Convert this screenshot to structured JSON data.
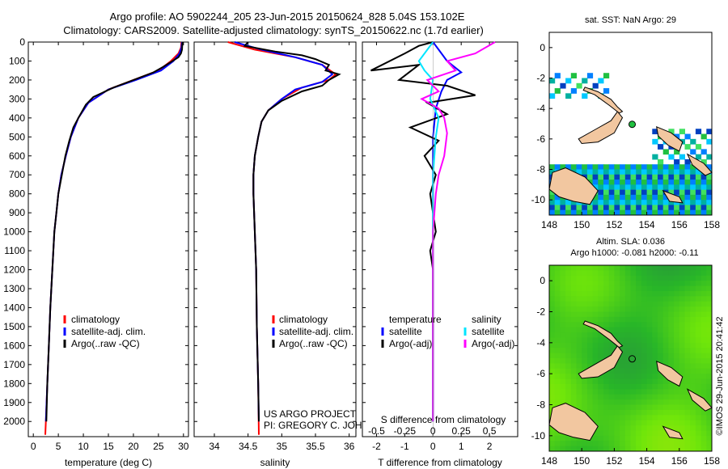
{
  "header": {
    "line1": "Argo profile: AO 5902244_205 23-Jun-2015 20150624_828 5.04S 153.102E",
    "line2": "Climatology: CARS2009. Satellite-adjusted climatology: synTS_20150622.nc (1.7d earlier)"
  },
  "colors": {
    "clim": "#ff0000",
    "sat": "#0000ff",
    "argo": "#000000",
    "sal_sat": "#00e5ff",
    "sal_argo": "#ff00ff",
    "land": "#f2c7a0"
  },
  "depth_axis": {
    "ticks": [
      0,
      100,
      200,
      300,
      400,
      500,
      600,
      700,
      800,
      900,
      1000,
      1100,
      1200,
      1300,
      1400,
      1500,
      1600,
      1700,
      1800,
      1900,
      2000
    ],
    "ylim": [
      0,
      2080
    ]
  },
  "chart_data": [
    {
      "type": "line",
      "id": "temperature",
      "xlabel": "temperature (deg C)",
      "xlim": [
        -1,
        31
      ],
      "xticks": [
        0,
        5,
        10,
        15,
        20,
        25,
        30
      ],
      "legend": [
        "climatology",
        "satellite-adj. clim.",
        "Argo(..raw -QC)"
      ],
      "series": [
        {
          "name": "climatology",
          "color": "clim",
          "points": [
            [
              29.6,
              0
            ],
            [
              29.5,
              30
            ],
            [
              29,
              60
            ],
            [
              27.5,
              100
            ],
            [
              25,
              150
            ],
            [
              20,
              200
            ],
            [
              15,
              250
            ],
            [
              11,
              320
            ],
            [
              9,
              400
            ],
            [
              7.5,
              500
            ],
            [
              6.5,
              600
            ],
            [
              5.6,
              700
            ],
            [
              5,
              800
            ],
            [
              4.6,
              900
            ],
            [
              4.2,
              1000
            ],
            [
              3.8,
              1200
            ],
            [
              3.4,
              1400
            ],
            [
              3.1,
              1600
            ],
            [
              2.8,
              1800
            ],
            [
              2.5,
              2000
            ],
            [
              2.4,
              2070
            ]
          ]
        },
        {
          "name": "satellite-adj. clim.",
          "color": "sat",
          "points": [
            [
              29.7,
              0
            ],
            [
              29.6,
              30
            ],
            [
              29.2,
              60
            ],
            [
              28,
              100
            ],
            [
              25.5,
              150
            ],
            [
              20.5,
              200
            ],
            [
              15,
              250
            ],
            [
              11,
              320
            ],
            [
              9,
              400
            ],
            [
              7.5,
              500
            ],
            [
              6.5,
              600
            ],
            [
              5.6,
              700
            ],
            [
              5,
              800
            ],
            [
              4.6,
              900
            ],
            [
              4.2,
              1000
            ],
            [
              3.8,
              1200
            ],
            [
              3.4,
              1400
            ],
            [
              3.1,
              1600
            ],
            [
              2.8,
              1800
            ],
            [
              2.5,
              2000
            ]
          ]
        },
        {
          "name": "Argo",
          "color": "argo",
          "points": [
            [
              29.8,
              0
            ],
            [
              29.7,
              40
            ],
            [
              29.5,
              60
            ],
            [
              29,
              80
            ],
            [
              26,
              130
            ],
            [
              24,
              160
            ],
            [
              19,
              210
            ],
            [
              16,
              240
            ],
            [
              12,
              290
            ],
            [
              10.5,
              330
            ],
            [
              9,
              400
            ],
            [
              8,
              450
            ],
            [
              7.2,
              520
            ],
            [
              6.4,
              600
            ],
            [
              5.7,
              700
            ],
            [
              5,
              800
            ],
            [
              4.6,
              900
            ],
            [
              4.2,
              1000
            ],
            [
              3.8,
              1200
            ],
            [
              3.4,
              1400
            ],
            [
              3.1,
              1600
            ],
            [
              2.8,
              1800
            ],
            [
              2.6,
              2000
            ]
          ]
        }
      ]
    },
    {
      "type": "line",
      "id": "salinity",
      "xlabel": "salinity",
      "xlim": [
        33.7,
        36.1
      ],
      "xticks": [
        34,
        34.5,
        35,
        35.5,
        36
      ],
      "legend": [
        "climatology",
        "satellite-adj. clim.",
        "Argo(..raw -QC)"
      ],
      "annotation": [
        "US ARGO PROJECT",
        "PI: GREGORY C. JOHNSON"
      ],
      "series": [
        {
          "name": "climatology",
          "color": "clim",
          "points": [
            [
              34.2,
              0
            ],
            [
              34.6,
              40
            ],
            [
              35.2,
              80
            ],
            [
              35.6,
              120
            ],
            [
              35.8,
              170
            ],
            [
              35.7,
              200
            ],
            [
              35.3,
              240
            ],
            [
              35,
              300
            ],
            [
              34.8,
              360
            ],
            [
              34.7,
              420
            ],
            [
              34.65,
              500
            ],
            [
              34.6,
              600
            ],
            [
              34.58,
              700
            ],
            [
              34.58,
              800
            ],
            [
              34.6,
              1000
            ],
            [
              34.62,
              1200
            ],
            [
              34.63,
              1500
            ],
            [
              34.65,
              1800
            ],
            [
              34.66,
              2070
            ]
          ]
        },
        {
          "name": "satellite-adj. clim.",
          "color": "sat",
          "points": [
            [
              34.3,
              0
            ],
            [
              34.7,
              40
            ],
            [
              35.2,
              80
            ],
            [
              35.6,
              120
            ],
            [
              35.75,
              170
            ],
            [
              35.6,
              210
            ],
            [
              35.2,
              250
            ],
            [
              35,
              300
            ],
            [
              34.8,
              360
            ],
            [
              34.7,
              420
            ],
            [
              34.65,
              500
            ],
            [
              34.6,
              600
            ],
            [
              34.58,
              700
            ],
            [
              34.58,
              800
            ],
            [
              34.6,
              1000
            ],
            [
              34.62,
              1200
            ],
            [
              34.63,
              1500
            ],
            [
              34.65,
              1800
            ],
            [
              34.66,
              2000
            ]
          ]
        },
        {
          "name": "Argo",
          "color": "argo",
          "points": [
            [
              34.5,
              0
            ],
            [
              34.45,
              20
            ],
            [
              34.9,
              50
            ],
            [
              35.3,
              70
            ],
            [
              35.5,
              90
            ],
            [
              35.7,
              120
            ],
            [
              35.65,
              150
            ],
            [
              35.85,
              170
            ],
            [
              35.7,
              200
            ],
            [
              35.6,
              230
            ],
            [
              35.3,
              260
            ],
            [
              35,
              310
            ],
            [
              34.8,
              360
            ],
            [
              34.7,
              420
            ],
            [
              34.65,
              500
            ],
            [
              34.6,
              600
            ],
            [
              34.58,
              700
            ],
            [
              34.58,
              800
            ],
            [
              34.6,
              1000
            ],
            [
              34.62,
              1200
            ],
            [
              34.63,
              1500
            ],
            [
              34.65,
              1800
            ],
            [
              34.66,
              2000
            ]
          ]
        }
      ]
    },
    {
      "type": "line",
      "id": "difference",
      "xlabel": "T difference from climatology",
      "xlabel_top": "S difference from climatology",
      "xlim": [
        -2.5,
        3
      ],
      "xticks": [
        -2,
        -1,
        0,
        1,
        2
      ],
      "xticks_s": [
        "-0.5",
        "-0.25",
        "0",
        "0.25",
        "0.5"
      ],
      "legend_left": [
        "temperature",
        "satellite",
        "Argo(-adj)"
      ],
      "legend_right": [
        "salinity",
        "satellite",
        "Argo(-adj)"
      ],
      "series": [
        {
          "name": "T satellite",
          "color": "sat",
          "points": [
            [
              0,
              0
            ],
            [
              0.2,
              40
            ],
            [
              0.5,
              100
            ],
            [
              1,
              160
            ],
            [
              0.5,
              200
            ],
            [
              0.3,
              260
            ],
            [
              0.1,
              350
            ],
            [
              0,
              500
            ],
            [
              0,
              1000
            ],
            [
              0,
              2000
            ]
          ]
        },
        {
          "name": "T Argo",
          "color": "argo",
          "points": [
            [
              0,
              0
            ],
            [
              -0.5,
              20
            ],
            [
              -1,
              60
            ],
            [
              -2.2,
              150
            ],
            [
              -0.5,
              120
            ],
            [
              -1.2,
              200
            ],
            [
              0.5,
              230
            ],
            [
              1.5,
              280
            ],
            [
              -0.2,
              320
            ],
            [
              0.5,
              380
            ],
            [
              -0.8,
              450
            ],
            [
              0.2,
              520
            ],
            [
              -0.3,
              600
            ],
            [
              0.1,
              700
            ],
            [
              -0.1,
              800
            ],
            [
              0,
              900
            ],
            [
              0.1,
              1000
            ],
            [
              -0.1,
              1100
            ],
            [
              0,
              1200
            ],
            [
              0,
              1500
            ],
            [
              0,
              1800
            ],
            [
              0,
              2000
            ]
          ]
        },
        {
          "name": "S satellite",
          "color": "sal_sat",
          "points": [
            [
              0,
              0
            ],
            [
              -0.5,
              100
            ],
            [
              -0.3,
              150
            ],
            [
              0,
              200
            ],
            [
              -0.1,
              300
            ],
            [
              0.2,
              400
            ],
            [
              0.1,
              500
            ],
            [
              0,
              700
            ],
            [
              0,
              1000
            ],
            [
              0,
              1500
            ],
            [
              0,
              2000
            ]
          ]
        },
        {
          "name": "S Argo",
          "color": "sal_argo",
          "points": [
            [
              2.2,
              0
            ],
            [
              1.5,
              60
            ],
            [
              0.5,
              100
            ],
            [
              0.8,
              150
            ],
            [
              -0.2,
              200
            ],
            [
              0.2,
              260
            ],
            [
              -0.4,
              300
            ],
            [
              0.2,
              350
            ],
            [
              0.4,
              400
            ],
            [
              0.5,
              480
            ],
            [
              0.4,
              600
            ],
            [
              0.2,
              700
            ],
            [
              0.1,
              800
            ],
            [
              0,
              1000
            ],
            [
              0,
              1500
            ],
            [
              0,
              2000
            ]
          ]
        }
      ]
    },
    {
      "type": "heatmap",
      "id": "sst_map",
      "title": "sat. SST: NaN Argo: 29",
      "xlim": [
        148,
        158
      ],
      "ylim": [
        -11,
        1
      ],
      "xticks": [
        148,
        150,
        152,
        154,
        156,
        158
      ],
      "yticks": [
        0,
        -2,
        -4,
        -6,
        -8,
        -10
      ],
      "argo_position": [
        153.1,
        -5.04
      ]
    },
    {
      "type": "heatmap",
      "id": "sla_map",
      "title": "Altim. SLA: 0.036",
      "subtitle": "Argo h1000: -0.081 h2000: -0.11",
      "xlim": [
        148,
        158
      ],
      "ylim": [
        -11,
        1
      ],
      "xticks": [
        148,
        150,
        152,
        154,
        156,
        158
      ],
      "yticks": [
        0,
        -2,
        -4,
        -6,
        -8,
        -10
      ],
      "argo_position": [
        153.1,
        -5.04
      ]
    }
  ],
  "credit": "©IMOS 29-Jun-2015 20:41:42"
}
